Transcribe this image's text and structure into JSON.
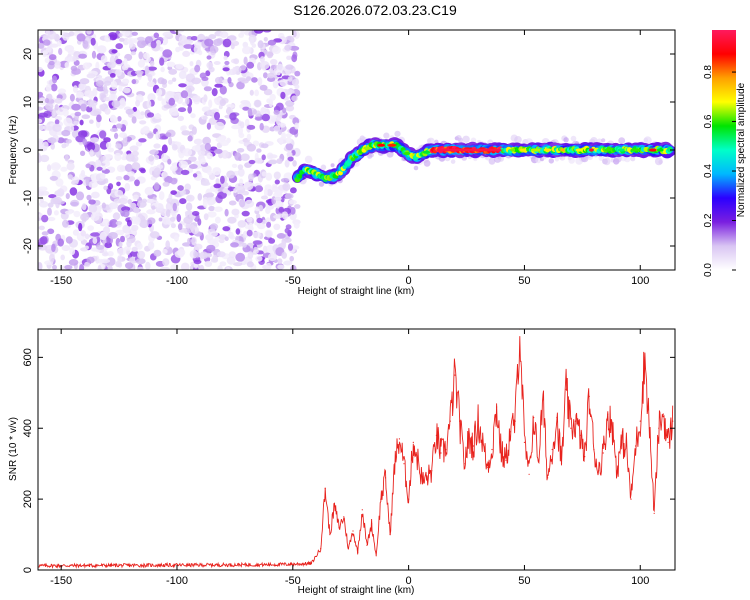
{
  "title": "S126.2026.072.03.23.C19",
  "colorbar": {
    "label": "Normalized spectral amplitude",
    "ticks": [
      "0.0",
      "0.2",
      "0.4",
      "0.6",
      "0.8"
    ],
    "tick_values": [
      0.0,
      0.2,
      0.4,
      0.6,
      0.8
    ],
    "range": [
      0,
      0.97
    ],
    "stops": [
      "#ffffff",
      "#d9c5f3",
      "#7a1fe0",
      "#2b00ff",
      "#00b7ff",
      "#00ffc8",
      "#00e400",
      "#ffff00",
      "#ffa000",
      "#ff0000",
      "#ff1a5e"
    ]
  },
  "chart_data": [
    {
      "type": "heatmap",
      "xlabel": "Height of straight line (km)",
      "ylabel": "Frequency (Hz)",
      "xlim": [
        -160,
        115
      ],
      "ylim": [
        -25,
        25
      ],
      "xticks": [
        -150,
        -100,
        -50,
        0,
        50,
        100
      ],
      "yticks": [
        -20,
        -10,
        0,
        10,
        20
      ],
      "xtick_labels": [
        "-150",
        "-100",
        "-50",
        "0",
        "50",
        "100"
      ],
      "ytick_labels": [
        "-20",
        "-10",
        "0",
        "10",
        "20"
      ],
      "noise_region_x": [
        -160,
        -48
      ],
      "trace": {
        "x": [
          -48,
          -45,
          -40,
          -35,
          -30,
          -25,
          -20,
          -15,
          -10,
          -5,
          0,
          3,
          5,
          10,
          20,
          40,
          60,
          80,
          100,
          113
        ],
        "y": [
          -6,
          -4,
          -5,
          -6,
          -5,
          -2,
          0,
          1,
          1,
          1,
          -1,
          -1.5,
          -1,
          0,
          0,
          0,
          0,
          0,
          0,
          0
        ]
      }
    },
    {
      "type": "line",
      "xlabel": "Height of straight line (km)",
      "ylabel": "SNR (10 * v/v)",
      "xlim": [
        -160,
        115
      ],
      "ylim": [
        0,
        680
      ],
      "xticks": [
        -150,
        -100,
        -50,
        0,
        50,
        100
      ],
      "yticks": [
        0,
        200,
        400,
        600
      ],
      "xtick_labels": [
        "-150",
        "-100",
        "-50",
        "0",
        "50",
        "100"
      ],
      "ytick_labels": [
        "0",
        "200",
        "400",
        "600"
      ],
      "color": "#e8221d",
      "series": [
        {
          "x": [
            -160,
            -60,
            -42,
            -38,
            -36,
            -34,
            -32,
            -30,
            -28,
            -26,
            -24,
            -22,
            -20,
            -18,
            -16,
            -14,
            -12,
            -10,
            -8,
            -6,
            -4,
            -2,
            0,
            2,
            4,
            6,
            8,
            10,
            12,
            14,
            16,
            18,
            20,
            22,
            24,
            26,
            28,
            30,
            32,
            34,
            36,
            38,
            40,
            42,
            44,
            46,
            48,
            50,
            52,
            54,
            56,
            58,
            60,
            62,
            64,
            66,
            68,
            70,
            72,
            74,
            76,
            78,
            80,
            82,
            84,
            86,
            88,
            90,
            92,
            94,
            96,
            98,
            100,
            102,
            104,
            106,
            108,
            110,
            112,
            114
          ],
          "y": [
            12,
            15,
            18,
            60,
            230,
            100,
            180,
            120,
            150,
            60,
            110,
            50,
            170,
            70,
            130,
            40,
            200,
            260,
            100,
            300,
            370,
            300,
            200,
            360,
            310,
            250,
            260,
            280,
            380,
            330,
            340,
            420,
            550,
            420,
            300,
            370,
            350,
            420,
            360,
            290,
            340,
            460,
            330,
            310,
            390,
            420,
            680,
            360,
            270,
            430,
            310,
            480,
            260,
            340,
            430,
            300,
            510,
            400,
            420,
            380,
            320,
            490,
            340,
            280,
            330,
            440,
            400,
            280,
            360,
            350,
            200,
            350,
            420,
            600,
            400,
            160,
            400,
            440,
            360,
            420
          ]
        }
      ]
    }
  ]
}
